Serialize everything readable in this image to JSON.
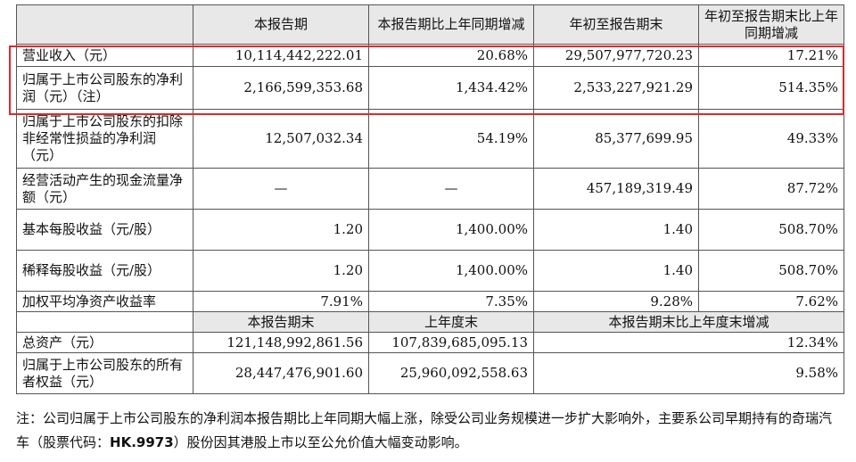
{
  "header": {
    "blank": "",
    "col1": "本报告期",
    "col2": "本报告期比上年同期增减",
    "col3": "年初至报告期末",
    "col4": "年初至报告期末比上年同期增减"
  },
  "rows": [
    {
      "label": "营业收入（元）",
      "c1": "10,114,442,222.01",
      "c2": "20.68%",
      "c3": "29,507,977,720.23",
      "c4": "17.21%"
    },
    {
      "label": "归属于上市公司股东的净利润（元）（注）",
      "c1": "2,166,599,353.68",
      "c2": "1,434.42%",
      "c3": "2,533,227,921.29",
      "c4": "514.35%"
    },
    {
      "label": "归属于上市公司股东的扣除非经常性损益的净利润（元）",
      "c1": "12,507,032.34",
      "c2": "54.19%",
      "c3": "85,377,699.95",
      "c4": "49.33%"
    },
    {
      "label": "经营活动产生的现金流量净额（元）",
      "c1": "—",
      "c2": "—",
      "c3": "457,189,319.49",
      "c4": "87.72%"
    },
    {
      "label": "基本每股收益（元/股）",
      "c1": "1.20",
      "c2": "1,400.00%",
      "c3": "1.40",
      "c4": "508.70%"
    },
    {
      "label": "稀释每股收益（元/股）",
      "c1": "1.20",
      "c2": "1,400.00%",
      "c3": "1.40",
      "c4": "508.70%"
    },
    {
      "label": "加权平均净资产收益率",
      "c1": "7.91%",
      "c2": "7.35%",
      "c3": "9.28%",
      "c4": "7.62%"
    }
  ],
  "header2": {
    "blank": "",
    "col1": "本报告期末",
    "col2": "上年度末",
    "col3": "本报告期末比上年度末增减"
  },
  "rows2": [
    {
      "label": "总资产（元）",
      "c1": "121,148,992,861.56",
      "c2": "107,839,685,095.13",
      "c3": "12.34%"
    },
    {
      "label": "归属于上市公司股东的所有者权益（元）",
      "c1": "28,447,476,901.60",
      "c2": "25,960,092,558.63",
      "c3": "9.58%"
    }
  ],
  "note": {
    "text_before": "注：公司归属于上市公司股东的净利润本报告期比上年同期大幅上涨，除受公司业务规模进一步扩大影响外，主要系公司早期持有的奇瑞汽车（股票代码：",
    "code": "HK.9973",
    "text_after": "）股份因其港股上市以至公允价值大幅变动影响。"
  },
  "highlight_color": "#e0272d"
}
